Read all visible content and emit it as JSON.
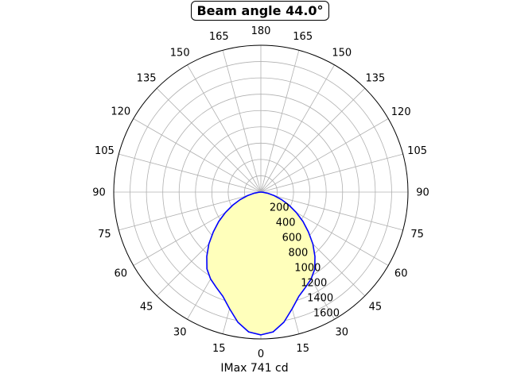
{
  "chart_data": {
    "type": "polar-line",
    "title": "Beam angle 44.0°",
    "xlabel": "IMax 741 cd",
    "angle_tick_labels": [
      "0",
      "15",
      "30",
      "45",
      "60",
      "75",
      "90",
      "105",
      "120",
      "135",
      "150",
      "165",
      "180",
      "165",
      "150",
      "135",
      "120",
      "105",
      "90",
      "75",
      "60",
      "45",
      "30",
      "15"
    ],
    "radial_tick_labels": [
      "200",
      "400",
      "600",
      "800",
      "1000",
      "1200",
      "1400",
      "1600"
    ],
    "radial_ticks": [
      200,
      400,
      600,
      800,
      1000,
      1200,
      1400,
      1600
    ],
    "rlim": [
      0,
      1800
    ],
    "grid": true,
    "series": [
      {
        "line_color": "#0000ff",
        "fill_color": "#ffffbb",
        "angle_deg": [
          0,
          5,
          10,
          15,
          20,
          25,
          30,
          35,
          40,
          45,
          50,
          55,
          60,
          65,
          70,
          75,
          80,
          85,
          90
        ],
        "intensity": [
          1750,
          1720,
          1620,
          1480,
          1360,
          1290,
          1230,
          1150,
          1030,
          900,
          760,
          630,
          500,
          380,
          270,
          170,
          90,
          30,
          0
        ]
      }
    ]
  }
}
